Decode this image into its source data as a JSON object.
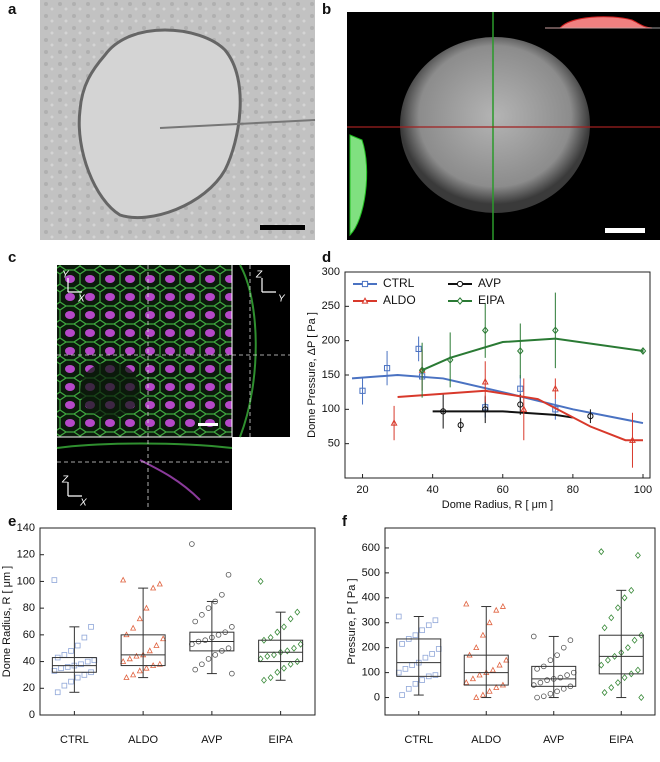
{
  "panel_labels": [
    "a",
    "b",
    "c",
    "d",
    "e",
    "f"
  ],
  "image_axes": {
    "c_main": [
      "Y",
      "X"
    ],
    "c_side": [
      "Z",
      "Y"
    ],
    "c_bottom": [
      "Z",
      "X"
    ]
  },
  "chart_data": [
    {
      "type": "errorbar",
      "xlabel": "Dome Radius, R [ μm ]",
      "ylabel": "Dome Pressure, ΔP [ Pa ]",
      "xlim": [
        15,
        102
      ],
      "ylim": [
        0,
        300
      ],
      "xticks": [
        20,
        40,
        60,
        80,
        100
      ],
      "yticks": [
        50,
        100,
        150,
        200,
        250,
        300
      ],
      "legend": "upper left",
      "series": [
        {
          "name": "CTRL",
          "color": "#4a72c2",
          "marker": "square",
          "x": [
            20,
            27,
            36,
            37,
            55,
            65,
            75
          ],
          "values": [
            127,
            160,
            188,
            148,
            103,
            130,
            100
          ],
          "errors": [
            20,
            25,
            18,
            20,
            15,
            20,
            15
          ],
          "fit_x": [
            17,
            30,
            43,
            60,
            80,
            100
          ],
          "fit_values": [
            145,
            150,
            145,
            125,
            100,
            80
          ]
        },
        {
          "name": "AVP",
          "color": "#111111",
          "marker": "circle",
          "x": [
            43,
            48,
            55,
            65,
            85
          ],
          "values": [
            97,
            77,
            100,
            107,
            90
          ],
          "errors": [
            25,
            10,
            20,
            15,
            10
          ],
          "fit_x": [
            40,
            60,
            75,
            80
          ],
          "fit_values": [
            97,
            97,
            92,
            88
          ]
        },
        {
          "name": "ALDO",
          "color": "#d8392b",
          "marker": "triangle",
          "x": [
            29,
            37,
            55,
            66,
            75,
            97
          ],
          "values": [
            80,
            157,
            140,
            100,
            130,
            55
          ],
          "errors": [
            25,
            30,
            30,
            45,
            15,
            40
          ],
          "fit_x": [
            30,
            55,
            70,
            85,
            95,
            100
          ],
          "fit_values": [
            118,
            127,
            115,
            75,
            55,
            55
          ]
        },
        {
          "name": "EIPA",
          "color": "#2a7a34",
          "marker": "diamond",
          "x": [
            37,
            45,
            55,
            65,
            75,
            100
          ],
          "values": [
            157,
            172,
            215,
            185,
            215,
            185
          ],
          "errors": [
            40,
            40,
            40,
            40,
            55,
            5
          ],
          "fit_x": [
            37,
            45,
            60,
            75,
            100
          ],
          "fit_values": [
            157,
            175,
            198,
            203,
            185
          ]
        }
      ]
    },
    {
      "type": "box",
      "ylabel": "Dome Radius, R [ μm ]",
      "ylim": [
        0,
        140
      ],
      "yticks": [
        0,
        20,
        40,
        60,
        80,
        100,
        120,
        140
      ],
      "categories": [
        "CTRL",
        "ALDO",
        "AVP",
        "EIPA"
      ],
      "boxes": [
        {
          "color": "#8fa6d8",
          "marker": "square",
          "whisker_low": 17,
          "q1": 32,
          "median": 37,
          "q3": 43,
          "whisker_high": 66,
          "points": [
            101,
            66,
            58,
            52,
            48,
            45,
            43,
            41,
            40,
            38,
            37,
            36,
            35,
            33,
            32,
            30,
            28,
            25,
            22,
            17
          ]
        },
        {
          "color": "#e0623f",
          "marker": "triangle",
          "whisker_low": 28,
          "q1": 37,
          "median": 45,
          "q3": 60,
          "whisker_high": 95,
          "points": [
            101,
            98,
            95,
            80,
            72,
            65,
            60,
            57,
            52,
            48,
            45,
            44,
            42,
            40,
            38,
            37,
            35,
            33,
            30,
            28
          ]
        },
        {
          "color": "#555555",
          "marker": "circle",
          "whisker_low": 31,
          "q1": 48,
          "median": 55,
          "q3": 62,
          "whisker_high": 85,
          "points": [
            128,
            105,
            90,
            85,
            80,
            75,
            70,
            66,
            62,
            60,
            58,
            56,
            55,
            53,
            50,
            48,
            45,
            42,
            38,
            34,
            31
          ]
        },
        {
          "color": "#3a8a3a",
          "marker": "diamond",
          "whisker_low": 26,
          "q1": 40,
          "median": 47,
          "q3": 56,
          "whisker_high": 77,
          "points": [
            100,
            77,
            72,
            66,
            62,
            58,
            56,
            53,
            50,
            48,
            47,
            45,
            44,
            42,
            40,
            38,
            35,
            32,
            28,
            26
          ]
        }
      ]
    },
    {
      "type": "box",
      "ylabel": "Pressure, P [ Pa ]",
      "ylim": [
        -70,
        680
      ],
      "yticks": [
        0,
        100,
        200,
        300,
        400,
        500,
        600
      ],
      "categories": [
        "CTRL",
        "ALDO",
        "AVP",
        "EIPA"
      ],
      "boxes": [
        {
          "color": "#8fa6d8",
          "marker": "square",
          "whisker_low": 10,
          "q1": 85,
          "median": 140,
          "q3": 235,
          "whisker_high": 325,
          "points": [
            325,
            310,
            290,
            270,
            250,
            235,
            215,
            195,
            175,
            160,
            140,
            130,
            115,
            100,
            90,
            85,
            70,
            55,
            35,
            10
          ]
        },
        {
          "color": "#e0623f",
          "marker": "triangle",
          "whisker_low": 0,
          "q1": 50,
          "median": 100,
          "q3": 170,
          "whisker_high": 365,
          "points": [
            375,
            365,
            350,
            300,
            250,
            200,
            170,
            150,
            130,
            110,
            100,
            90,
            75,
            60,
            50,
            40,
            25,
            10,
            0
          ]
        },
        {
          "color": "#555555",
          "marker": "circle",
          "whisker_low": 0,
          "q1": 45,
          "median": 75,
          "q3": 125,
          "whisker_high": 245,
          "points": [
            245,
            230,
            200,
            170,
            150,
            125,
            115,
            100,
            90,
            80,
            75,
            70,
            60,
            50,
            45,
            35,
            25,
            15,
            5,
            0
          ]
        },
        {
          "color": "#3a8a3a",
          "marker": "diamond",
          "whisker_low": 0,
          "q1": 95,
          "median": 165,
          "q3": 250,
          "whisker_high": 430,
          "points": [
            585,
            570,
            430,
            400,
            360,
            320,
            280,
            250,
            230,
            200,
            180,
            165,
            150,
            130,
            110,
            95,
            80,
            60,
            40,
            20,
            0
          ]
        }
      ]
    }
  ]
}
